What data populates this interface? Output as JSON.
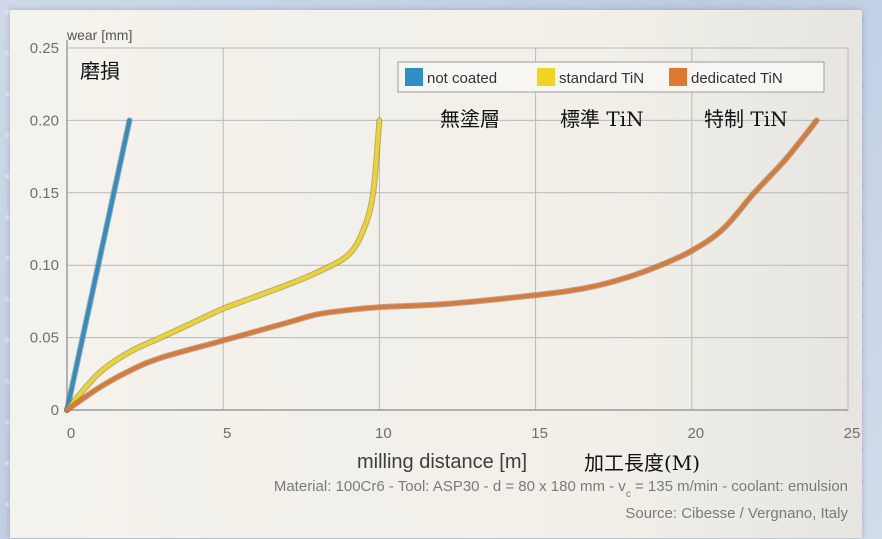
{
  "chart_data": {
    "type": "line",
    "ylabel": "wear [mm]",
    "ylabel_cn": "磨損",
    "xlabel": "milling distance [m]",
    "xlabel_cn": "加工長度(M)",
    "xlim": [
      0,
      25
    ],
    "ylim": [
      0,
      0.25
    ],
    "x_ticks": [
      "0",
      "5",
      "10",
      "15",
      "20",
      "25"
    ],
    "y_ticks": [
      "0",
      "0.05",
      "0.10",
      "0.15",
      "0.20",
      "0.25"
    ],
    "grid": true,
    "legend_position": "top-right",
    "series": [
      {
        "name": "not coated",
        "name_cn": "無塗層",
        "color": "#2e8fc4",
        "points": [
          [
            0,
            0
          ],
          [
            0.5,
            0.05
          ],
          [
            1.0,
            0.1
          ],
          [
            1.5,
            0.15
          ],
          [
            2.0,
            0.2
          ]
        ]
      },
      {
        "name": "standard TiN",
        "name_cn": "標準 TiN",
        "color": "#f0d420",
        "points": [
          [
            0,
            0
          ],
          [
            1,
            0.025
          ],
          [
            2,
            0.04
          ],
          [
            3,
            0.05
          ],
          [
            4,
            0.06
          ],
          [
            5,
            0.07
          ],
          [
            6,
            0.078
          ],
          [
            7,
            0.086
          ],
          [
            8,
            0.095
          ],
          [
            9,
            0.107
          ],
          [
            9.5,
            0.125
          ],
          [
            9.8,
            0.15
          ],
          [
            10,
            0.2
          ]
        ]
      },
      {
        "name": "dedicated TiN",
        "name_cn": "特制 TiN",
        "color": "#e07830",
        "points": [
          [
            0,
            0
          ],
          [
            1,
            0.015
          ],
          [
            2,
            0.027
          ],
          [
            3,
            0.036
          ],
          [
            5,
            0.048
          ],
          [
            7,
            0.06
          ],
          [
            8,
            0.066
          ],
          [
            9,
            0.069
          ],
          [
            10,
            0.071
          ],
          [
            12,
            0.073
          ],
          [
            14,
            0.077
          ],
          [
            16,
            0.082
          ],
          [
            17,
            0.086
          ],
          [
            18,
            0.092
          ],
          [
            19,
            0.1
          ],
          [
            20,
            0.11
          ],
          [
            21,
            0.125
          ],
          [
            22,
            0.15
          ],
          [
            23,
            0.173
          ],
          [
            24,
            0.2
          ]
        ]
      }
    ],
    "caption_line1": "Material: 100Cr6 - Tool: ASP30 - d = 80 x 180 mm - v",
    "caption_vc_sub": "c",
    "caption_line1_end": " = 135 m/min - coolant: emulsion",
    "caption_line2": "Source: Cibesse / Vergnano, Italy"
  }
}
